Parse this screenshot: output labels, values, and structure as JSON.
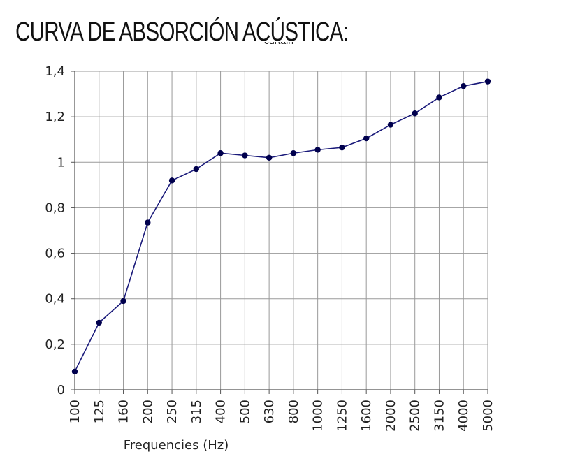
{
  "page": {
    "title": "CURVA DE ABSORCIÓN ACÚSTICA:",
    "subtitle_partial": "curtain"
  },
  "chart_data": {
    "type": "line",
    "title": "curtain",
    "xlabel": "Frequencies (Hz)",
    "ylabel": "",
    "categories": [
      "100",
      "125",
      "160",
      "200",
      "250",
      "315",
      "400",
      "500",
      "630",
      "800",
      "1000",
      "1250",
      "1600",
      "2000",
      "2500",
      "3150",
      "4000",
      "5000"
    ],
    "series": [
      {
        "values": [
          0.08,
          0.295,
          0.39,
          0.735,
          0.92,
          0.97,
          1.04,
          1.03,
          1.02,
          1.04,
          1.055,
          1.065,
          1.105,
          1.165,
          1.215,
          1.285,
          1.335,
          1.355
        ],
        "color": "#1a1a7a",
        "marker_color": "#00004d"
      }
    ],
    "ylim": [
      0,
      1.4
    ],
    "yticks": [
      "0",
      "0,2",
      "0,4",
      "0,6",
      "0,8",
      "1",
      "1,2",
      "1,4"
    ],
    "grid": true,
    "legend": "none"
  }
}
